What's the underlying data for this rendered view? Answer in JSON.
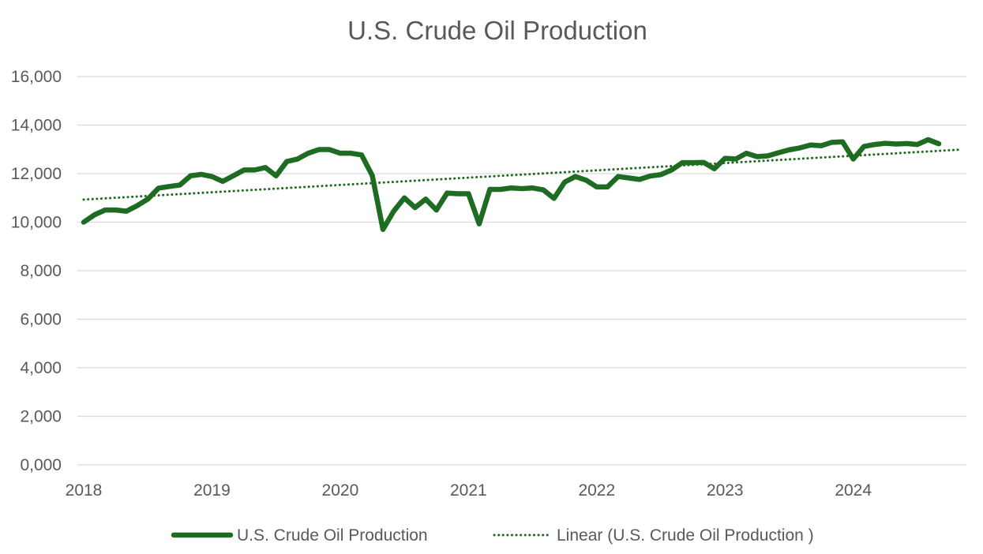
{
  "chart_data": {
    "type": "line",
    "title": "U.S. Crude Oil Production",
    "xlabel": "",
    "ylabel": "",
    "ylim": [
      0,
      16000
    ],
    "y_ticks": [
      0,
      2000,
      4000,
      6000,
      8000,
      10000,
      12000,
      14000,
      16000
    ],
    "y_tick_labels": [
      "0,000",
      "2,000",
      "4,000",
      "6,000",
      "8,000",
      "10,000",
      "12,000",
      "14,000",
      "16,000"
    ],
    "x_tick_labels": [
      "2018",
      "2019",
      "2020",
      "2021",
      "2022",
      "2023",
      "2024"
    ],
    "grid": true,
    "legend_position": "bottom",
    "colors": {
      "series": "#1e6b22",
      "text": "#595959",
      "grid": "#d9d9d9"
    },
    "series": [
      {
        "name": "U.S. Crude Oil Production",
        "style": "solid",
        "values": [
          10000,
          10300,
          10500,
          10500,
          10450,
          10680,
          10950,
          11400,
          11470,
          11530,
          11910,
          11970,
          11880,
          11680,
          11910,
          12150,
          12150,
          12250,
          11910,
          12500,
          12600,
          12840,
          12990,
          12990,
          12840,
          12840,
          12770,
          11920,
          9700,
          10450,
          11000,
          10600,
          10950,
          10500,
          11200,
          11170,
          11170,
          9930,
          11350,
          11350,
          11410,
          11380,
          11410,
          11330,
          10980,
          11650,
          11880,
          11730,
          11450,
          11450,
          11880,
          11820,
          11760,
          11900,
          11960,
          12150,
          12450,
          12450,
          12460,
          12200,
          12630,
          12600,
          12840,
          12700,
          12730,
          12860,
          12980,
          13060,
          13180,
          13150,
          13290,
          13310,
          12600,
          13120,
          13200,
          13250,
          13220,
          13240,
          13200,
          13400,
          13230
        ]
      },
      {
        "name": "Linear (U.S. Crude Oil Production )",
        "style": "dotted",
        "values": [
          10930,
          12990
        ]
      }
    ]
  }
}
